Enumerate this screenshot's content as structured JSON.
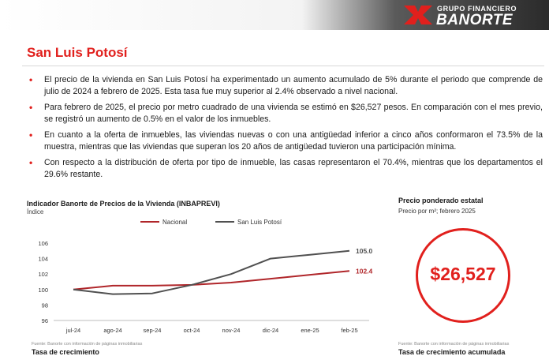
{
  "brand": {
    "group_text": "GRUPO FINANCIERO",
    "name": "BANORTE",
    "accent_color": "#e1201d",
    "logo_icon": "banorte-logo-icon"
  },
  "page": {
    "title": "San Luis Potosí"
  },
  "bullets": [
    "El precio de la vivienda en San Luis Potosí ha experimentado un aumento acumulado de 5% durante el periodo que comprende de julio de 2024 a febrero de 2025. Esta tasa fue muy superior al 2.4% observado a nivel nacional.",
    "Para febrero de 2025, el precio por metro cuadrado de una vivienda se estimó en $26,527 pesos. En comparación con el mes previo, se registró un aumento de 0.5% en el valor de los inmuebles.",
    "En cuanto a la oferta de inmuebles, las viviendas nuevas o con una antigüedad inferior a cinco años conformaron el 73.5% de la muestra, mientras que las viviendas que superan los 20 años de antigüedad tuvieron una participación mínima.",
    "Con respecto a la distribución de oferta por tipo de inmueble, las casas representaron el 70.4%, mientras que los departamentos el 29.6% restante."
  ],
  "chart_header": {
    "title": "Indicador Banorte de Precios de la Vivienda (INBAPREVI)",
    "subtitle": "Índice"
  },
  "chart_data": {
    "type": "line",
    "categories": [
      "jul-24",
      "ago-24",
      "sep-24",
      "oct-24",
      "nov-24",
      "dic-24",
      "ene-25",
      "feb-25"
    ],
    "series": [
      {
        "name": "Nacional",
        "color": "#b0262a",
        "values": [
          100.0,
          100.5,
          100.5,
          100.6,
          100.9,
          101.4,
          101.9,
          102.4
        ],
        "end_label": "102.4"
      },
      {
        "name": "San Luis Potosí",
        "color": "#505050",
        "values": [
          100.0,
          99.4,
          99.5,
          100.6,
          102.0,
          104.0,
          104.5,
          105.0
        ],
        "end_label": "105.0"
      }
    ],
    "ylim": [
      96,
      106
    ],
    "yticks": [
      "96",
      "98",
      "100",
      "102",
      "104",
      "106"
    ],
    "grid": false,
    "legend": "top"
  },
  "source_left": "Fuente: Banorte con información de páginas inmobiliarias",
  "footer_left": "Tasa de crecimiento",
  "price_box": {
    "title": "Precio ponderado estatal",
    "subtitle": "Precio por m²; febrero 2025",
    "value": "$26,527"
  },
  "source_right": "Fuente: Banorte con información de páginas inmobiliarias",
  "footer_right": "Tasa de crecimiento acumulada"
}
